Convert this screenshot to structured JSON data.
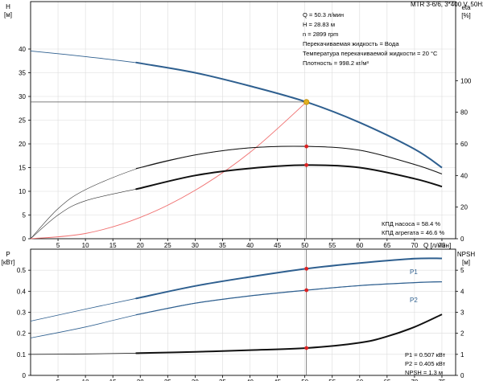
{
  "pump_title": "MTR 3-6/6, 3*400 V, 50Hz",
  "info_lines": [
    "Q = 50.3 л/мин",
    "H = 28.83 м",
    "n = 2899 rpm",
    "Перекачиваемая жидкость = Вода",
    "Температура перекачиваемой жидкости = 20 °C",
    "Плотность = 998.2 кг/м³"
  ],
  "efficiency_lines": [
    "КПД насоса = 58.4 %",
    "КПД агрегата = 46.6 %"
  ],
  "power_lines": [
    "P1 = 0.507 кВт",
    "P2 = 0.405 кВт",
    "NPSH = 1.3 м"
  ],
  "colors": {
    "head": "#2e5f8f",
    "power": "#2e5f8f",
    "efficiency": "#111111",
    "system": "#f07070",
    "dutypoint": "#e0b020",
    "marker": "#dd2222"
  },
  "chart_data": [
    {
      "type": "line",
      "x_axis": {
        "label": "Q [л/мин]",
        "ticks": [
          "0",
          "5",
          "10",
          "15",
          "20",
          "25",
          "30",
          "35",
          "40",
          "45",
          "50",
          "55",
          "60",
          "65",
          "70",
          "75"
        ],
        "range": [
          0,
          77.5
        ]
      },
      "y_left": {
        "label": "H",
        "unit": "[м]",
        "ticks": [
          "0",
          "5",
          "10",
          "15",
          "20",
          "25",
          "30",
          "35",
          "40"
        ],
        "range": [
          0,
          50
        ]
      },
      "y_right": {
        "label": "eta",
        "unit": "[%]",
        "ticks": [
          "0",
          "20",
          "40",
          "60",
          "80",
          "100"
        ],
        "range": [
          0,
          150
        ]
      },
      "grid": true,
      "duty_point": {
        "x": 50.3,
        "y": 28.83
      },
      "series": [
        {
          "id": "head",
          "axis": "left",
          "x": [
            0,
            10,
            20,
            30,
            40,
            50.3,
            60,
            70,
            75
          ],
          "y": [
            39.6,
            38.4,
            37.0,
            35.0,
            32.2,
            28.83,
            24.5,
            18.9,
            15.0
          ]
        },
        {
          "id": "system",
          "axis": "left",
          "x": [
            0,
            10,
            20,
            30,
            40,
            50.3
          ],
          "y": [
            0,
            1.1,
            4.5,
            10.2,
            18.2,
            28.83
          ]
        },
        {
          "id": "eff_pump",
          "name": "КПД насоса",
          "axis": "right",
          "x": [
            0,
            5,
            10,
            20,
            30,
            40,
            50.3,
            60,
            70,
            75
          ],
          "y": [
            0,
            19,
            31,
            45,
            53,
            57.5,
            58.4,
            56,
            47,
            41
          ]
        },
        {
          "id": "eff_unit",
          "name": "КПД агрегата",
          "axis": "right",
          "x": [
            0,
            5,
            10,
            20,
            30,
            40,
            50.3,
            60,
            70,
            75
          ],
          "y": [
            0,
            15,
            24,
            32,
            40,
            44.5,
            46.6,
            45,
            38,
            33
          ]
        }
      ]
    },
    {
      "type": "line",
      "x_axis": {
        "ticks": [
          "0",
          "5",
          "10",
          "15",
          "20",
          "25",
          "30",
          "35",
          "40",
          "45",
          "50",
          "55",
          "60",
          "65",
          "70",
          "75"
        ],
        "range": [
          0,
          77.5
        ]
      },
      "y_left": {
        "label": "P",
        "unit": "[кВт]",
        "ticks": [
          "0",
          "0.1",
          "0.2",
          "0.3",
          "0.4",
          "0.5"
        ],
        "range": [
          0,
          0.6
        ]
      },
      "y_right": {
        "label": "NPSH",
        "unit": "[м]",
        "ticks": [
          "0",
          "1",
          "2",
          "3",
          "4",
          "5"
        ],
        "range": [
          0,
          6
        ]
      },
      "grid": true,
      "series": [
        {
          "id": "P1",
          "name": "P1",
          "axis": "left",
          "x": [
            0,
            10,
            20,
            30,
            40,
            50.3,
            60,
            70,
            75
          ],
          "y": [
            0.258,
            0.315,
            0.37,
            0.425,
            0.468,
            0.507,
            0.534,
            0.555,
            0.556
          ]
        },
        {
          "id": "P2",
          "name": "P2",
          "axis": "left",
          "x": [
            0,
            10,
            20,
            30,
            40,
            50.3,
            60,
            70,
            75
          ],
          "y": [
            0.178,
            0.23,
            0.292,
            0.343,
            0.378,
            0.405,
            0.427,
            0.441,
            0.445
          ]
        },
        {
          "id": "NPSH",
          "name": "NPSH",
          "axis": "right",
          "x": [
            0,
            10,
            20,
            30,
            40,
            50.3,
            60,
            65,
            70,
            75
          ],
          "y": [
            1.0,
            1.02,
            1.06,
            1.12,
            1.2,
            1.3,
            1.55,
            1.85,
            2.3,
            2.9
          ]
        }
      ]
    }
  ]
}
